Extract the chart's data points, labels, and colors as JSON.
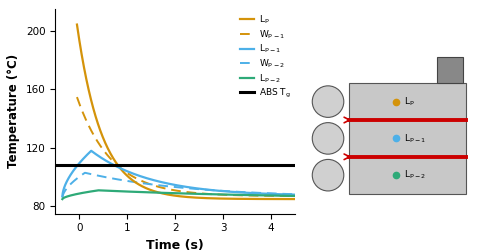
{
  "title": "",
  "xlabel": "Time (s)",
  "ylabel": "Temperature (°C)",
  "xlim": [
    -0.5,
    4.5
  ],
  "ylim": [
    75,
    215
  ],
  "yticks": [
    80,
    120,
    160,
    200
  ],
  "xticks": [
    0,
    1,
    2,
    3,
    4
  ],
  "abs_tg": 108,
  "color_lp": "#D4930A",
  "color_lp1": "#4DB0E8",
  "color_lp2": "#2EAA78",
  "color_wp1": "#D4930A",
  "color_wp2": "#4DB0E8",
  "color_tg": "#000000",
  "dot_lp": "#D4930A",
  "dot_lp1": "#4DB0E8",
  "dot_lp2": "#2EAA78",
  "layer_fill": "#C8C8C8",
  "layer_edge": "#555555",
  "circle_fill": "#D0D0D0",
  "circle_edge": "#555555",
  "nozzle_fill": "#888888",
  "nozzle_edge": "#444444",
  "weld_color": "#CC0000",
  "arrow_color": "#CC0000"
}
